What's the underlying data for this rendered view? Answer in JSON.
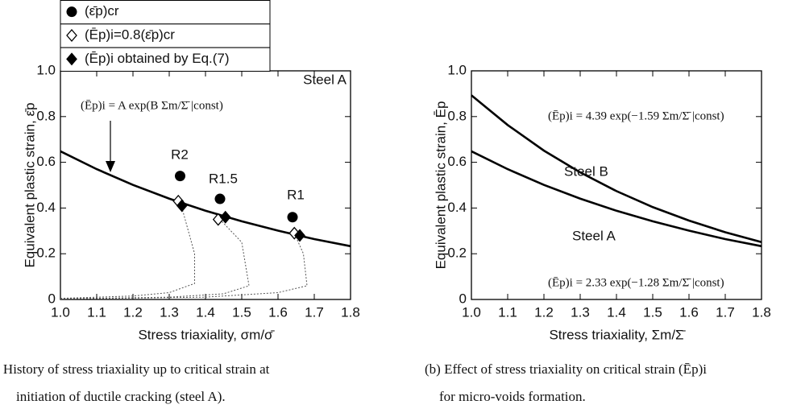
{
  "chart_data": [
    {
      "type": "line",
      "xlabel": "Stress triaxiality, σm/σ̄",
      "ylabel": "Equivalent plastic strain, ε̄p",
      "caption": [
        ") History of stress triaxiality up to critical strain at",
        "initiation of ductile cracking (steel A)."
      ],
      "annotations": [
        "Steel A",
        "(Ēp)i = A exp(B Σm/Σ̄ |const)",
        "R2",
        "R1.5",
        "R1"
      ],
      "xlim": [
        1.0,
        1.8
      ],
      "ylim": [
        0,
        1.0
      ],
      "xticks": [
        {
          "value": 1.0,
          "label": "1.0"
        },
        1.1,
        1.2,
        1.3,
        1.4,
        1.5,
        1.6,
        1.7,
        1.8
      ],
      "yticks": [
        0,
        0.2,
        0.4,
        0.6,
        0.8,
        {
          "value": 1.0,
          "label": "1.0"
        }
      ],
      "series": [
        {
          "style": "solid",
          "color": "#000",
          "x": [
            1.0,
            1.1,
            1.2,
            1.3,
            1.4,
            1.5,
            1.6,
            1.7,
            1.8
          ],
          "values": [
            0.648,
            0.57,
            0.501,
            0.441,
            0.388,
            0.342,
            0.301,
            0.264,
            0.233
          ]
        },
        {
          "style": "dotted",
          "color": "#555",
          "x": [
            1.0,
            1.2,
            1.3,
            1.37,
            1.37,
            1.33
          ],
          "values": [
            0.005,
            0.015,
            0.03,
            0.07,
            0.2,
            0.43
          ]
        },
        {
          "style": "dotted",
          "color": "#555",
          "x": [
            1.0,
            1.3,
            1.45,
            1.52,
            1.5,
            1.44
          ],
          "values": [
            0.003,
            0.01,
            0.025,
            0.06,
            0.25,
            0.35
          ]
        },
        {
          "style": "dotted",
          "color": "#555",
          "x": [
            1.0,
            1.4,
            1.6,
            1.68,
            1.67,
            1.645
          ],
          "values": [
            0.002,
            0.01,
            0.03,
            0.06,
            0.2,
            0.29
          ]
        },
        {
          "name": "(ε̄p)cr",
          "style": "circle",
          "color": "#000",
          "x": [
            1.33,
            1.44,
            1.64
          ],
          "values": [
            0.54,
            0.44,
            0.36
          ]
        },
        {
          "name": "(Ēp)i=0.8(ε̄p)cr",
          "style": "diamond-open",
          "color": "#000",
          "x": [
            1.325,
            1.435,
            1.645
          ],
          "values": [
            0.43,
            0.35,
            0.29
          ]
        },
        {
          "name": "(Ēp)i obtained by Eq.(7)",
          "style": "diamond",
          "color": "#000",
          "x": [
            1.335,
            1.455,
            1.66
          ],
          "values": [
            0.41,
            0.36,
            0.28
          ]
        }
      ]
    },
    {
      "type": "line",
      "xlabel": "Stress triaxiality, Σm/Σ̄",
      "ylabel": "Equivalent plastic strain, Ēp",
      "caption": [
        "(b) Effect of stress triaxiality on critical strain (Ēp)i",
        "for micro-voids formation."
      ],
      "annotations": [
        "(Ēp)i = 4.39 exp(−1.59 Σm/Σ̄ |const)",
        "(Ēp)i = 2.33 exp(−1.28 Σm/Σ̄ |const)"
      ],
      "xlim": [
        1.0,
        1.8
      ],
      "ylim": [
        0,
        1.0
      ],
      "xticks": [
        {
          "value": 1.0,
          "label": "1.0"
        },
        1.1,
        1.2,
        1.3,
        1.4,
        1.5,
        1.6,
        1.7,
        1.8
      ],
      "yticks": [
        0,
        0.2,
        0.4,
        0.6,
        0.8,
        {
          "value": 1.0,
          "label": "1.0"
        }
      ],
      "series": [
        {
          "label": "Steel B",
          "style": "solid",
          "color": "#000",
          "x": [
            1.0,
            1.1,
            1.2,
            1.3,
            1.4,
            1.5,
            1.6,
            1.7,
            1.8
          ],
          "values": [
            0.893,
            0.763,
            0.651,
            0.556,
            0.474,
            0.404,
            0.345,
            0.294,
            0.251
          ]
        },
        {
          "label": "Steel A",
          "style": "solid",
          "color": "#000",
          "x": [
            1.0,
            1.1,
            1.2,
            1.3,
            1.4,
            1.5,
            1.6,
            1.7,
            1.8
          ],
          "values": [
            0.648,
            0.57,
            0.501,
            0.441,
            0.388,
            0.342,
            0.301,
            0.264,
            0.233
          ]
        }
      ]
    }
  ]
}
